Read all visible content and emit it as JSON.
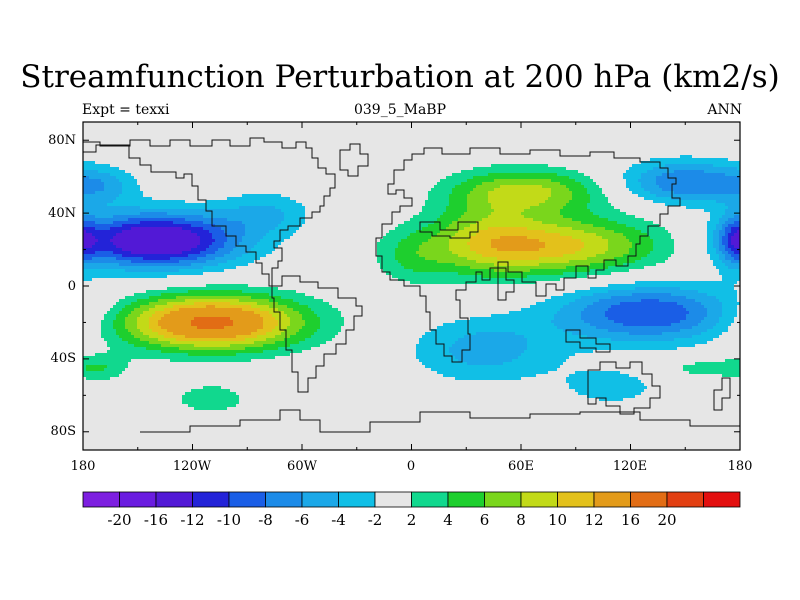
{
  "figure": {
    "title": "Streamfunction Perturbation at 200 hPa (km2/s)",
    "left_label": "Expt = texxi",
    "center_label": "039_5_MaBP",
    "right_label": "ANN",
    "lat_ticks": [
      "80N",
      "40N",
      "0",
      "40S",
      "80S"
    ],
    "lon_ticks": [
      "180",
      "120W",
      "60W",
      "0",
      "60E",
      "120E",
      "180"
    ]
  },
  "colorbar": {
    "colors": [
      "#7d1fe0",
      "#6a1ce0",
      "#5219d6",
      "#2323d8",
      "#1a5ee6",
      "#1c8be8",
      "#1ba8e8",
      "#11bfe6",
      "#e6e6e6",
      "#11d88e",
      "#1ecf2e",
      "#7ad61c",
      "#c2da18",
      "#e3c11b",
      "#e39b1a",
      "#e26d15",
      "#e23f12",
      "#e30f0f"
    ],
    "labels": [
      "-20",
      "-16",
      "-12",
      "-10",
      "-8",
      "-6",
      "-4",
      "-2",
      "2",
      "4",
      "6",
      "8",
      "10",
      "12",
      "16",
      "20"
    ]
  },
  "chart_data": {
    "type": "heatmap",
    "title": "Streamfunction Perturbation at 200 hPa (km2/s)",
    "x_axis": "longitude",
    "xlim": [
      -180,
      180
    ],
    "y_axis": "latitude",
    "ylim": [
      -90,
      90
    ],
    "contour_levels": [
      -20,
      -16,
      -12,
      -10,
      -8,
      -6,
      -4,
      -2,
      2,
      4,
      6,
      8,
      10,
      12,
      16,
      20
    ],
    "features": [
      {
        "lon": -140,
        "lat": 25,
        "value": -16,
        "rx": 45,
        "ry": 15
      },
      {
        "lon": -170,
        "lat": 55,
        "value": -4,
        "rx": 20,
        "ry": 10
      },
      {
        "lon": -80,
        "lat": 40,
        "value": -4,
        "rx": 25,
        "ry": 12
      },
      {
        "lon": -110,
        "lat": -20,
        "value": 17,
        "rx": 50,
        "ry": 15
      },
      {
        "lon": -170,
        "lat": -45,
        "value": 3,
        "rx": 15,
        "ry": 8
      },
      {
        "lon": -110,
        "lat": -62,
        "value": 3,
        "rx": 25,
        "ry": 10
      },
      {
        "lon": 75,
        "lat": 22,
        "value": 11,
        "rx": 60,
        "ry": 16
      },
      {
        "lon": 65,
        "lat": 52,
        "value": 8,
        "rx": 40,
        "ry": 12
      },
      {
        "lon": 40,
        "lat": 30,
        "value": 4,
        "rx": 30,
        "ry": 25
      },
      {
        "lon": 0,
        "lat": 15,
        "value": 3,
        "rx": 20,
        "ry": 15
      },
      {
        "lon": 130,
        "lat": -15,
        "value": -10,
        "rx": 50,
        "ry": 16
      },
      {
        "lon": 40,
        "lat": -35,
        "value": -5,
        "rx": 40,
        "ry": 18
      },
      {
        "lon": 110,
        "lat": -55,
        "value": -3,
        "rx": 30,
        "ry": 12
      },
      {
        "lon": 150,
        "lat": 57,
        "value": -8,
        "rx": 35,
        "ry": 12
      },
      {
        "lon": 178,
        "lat": 25,
        "value": -7,
        "rx": 10,
        "ry": 14
      },
      {
        "lon": 160,
        "lat": -45,
        "value": 3,
        "rx": 30,
        "ry": 6
      }
    ]
  }
}
